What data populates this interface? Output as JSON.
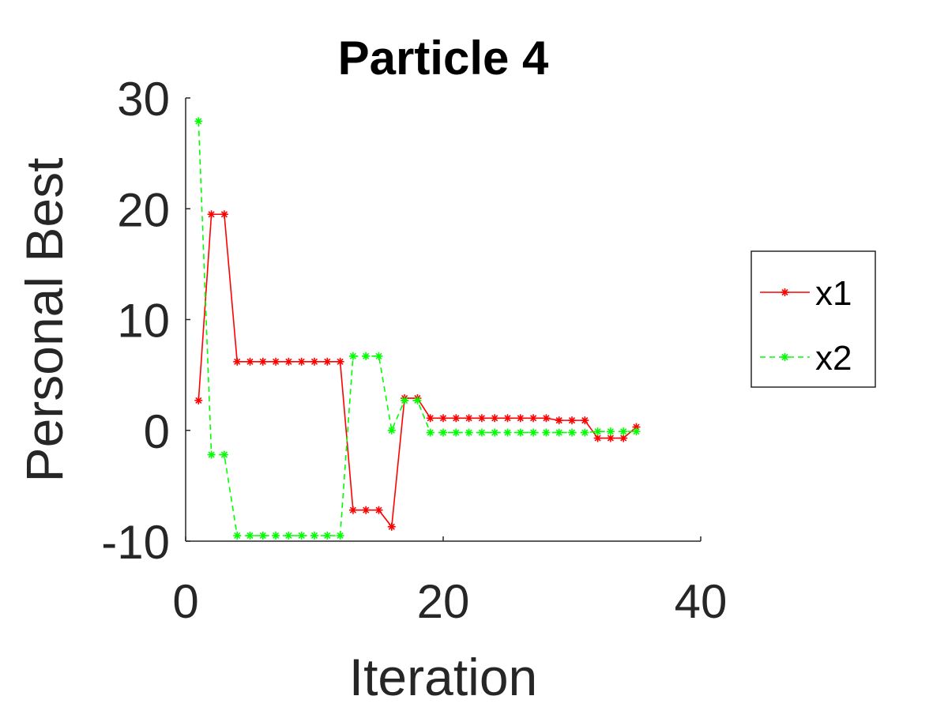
{
  "chart_data": {
    "type": "line",
    "title": "Particle 4",
    "xlabel": "Iteration",
    "ylabel": "Personal Best",
    "xlim": [
      0,
      40
    ],
    "ylim": [
      -10,
      30
    ],
    "xticks": [
      0,
      20,
      40
    ],
    "yticks": [
      -10,
      0,
      10,
      20,
      30
    ],
    "grid": false,
    "legend_position": "right",
    "series": [
      {
        "name": "x1",
        "color": "#ff0000",
        "line_style": "solid",
        "marker": "asterisk",
        "x": [
          1,
          2,
          3,
          4,
          5,
          6,
          7,
          8,
          9,
          10,
          11,
          12,
          13,
          14,
          15,
          16,
          17,
          18,
          19,
          20,
          21,
          22,
          23,
          24,
          25,
          26,
          27,
          28,
          29,
          30,
          31,
          32,
          33,
          34,
          35
        ],
        "values": [
          2.7,
          19.5,
          19.5,
          6.2,
          6.2,
          6.2,
          6.2,
          6.2,
          6.2,
          6.2,
          6.2,
          6.2,
          -7.2,
          -7.2,
          -7.2,
          -8.7,
          2.9,
          2.9,
          1.1,
          1.1,
          1.1,
          1.1,
          1.1,
          1.1,
          1.1,
          1.1,
          1.1,
          1.1,
          0.9,
          0.9,
          0.9,
          -0.7,
          -0.7,
          -0.7,
          0.3
        ]
      },
      {
        "name": "x2",
        "color": "#00ff00",
        "line_style": "dashed",
        "marker": "asterisk",
        "x": [
          1,
          2,
          3,
          4,
          5,
          6,
          7,
          8,
          9,
          10,
          11,
          12,
          13,
          14,
          15,
          16,
          17,
          18,
          19,
          20,
          21,
          22,
          23,
          24,
          25,
          26,
          27,
          28,
          29,
          30,
          31,
          32,
          33,
          34,
          35
        ],
        "values": [
          27.9,
          -2.2,
          -2.2,
          -9.5,
          -9.5,
          -9.5,
          -9.5,
          -9.5,
          -9.5,
          -9.5,
          -9.5,
          -9.5,
          6.7,
          6.7,
          6.7,
          0.0,
          2.7,
          2.7,
          -0.2,
          -0.2,
          -0.2,
          -0.2,
          -0.2,
          -0.2,
          -0.2,
          -0.2,
          -0.2,
          -0.2,
          -0.2,
          -0.2,
          -0.2,
          -0.1,
          -0.1,
          -0.1,
          -0.1
        ]
      }
    ]
  }
}
